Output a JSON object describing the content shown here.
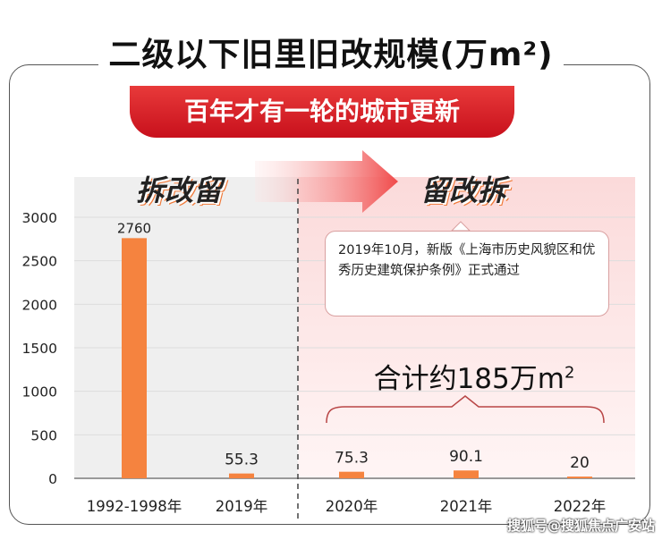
{
  "title": "二级以下旧里旧改规模(万m²)",
  "subtitle": "百年才有一轮的城市更新",
  "phase_left": "拆改留",
  "phase_right": "留改拆",
  "annotation": "2019年10月，新版《上海市历史风貌区和优秀历史建筑保护条例》正式通过",
  "total_label": {
    "text": "合计约185万m",
    "sup": "2"
  },
  "watermark": "搜狐号@搜狐焦点广安站",
  "colors": {
    "bar": "#f5833f",
    "ribbon": "#d91e26",
    "left_bg": "#efefef",
    "right_bg": "#fdeeee"
  },
  "chart_data": {
    "type": "bar",
    "categories": [
      "1992-1998年",
      "2019年",
      "2020年",
      "2021年",
      "2022年"
    ],
    "values": [
      2760,
      55.3,
      75.3,
      90.1,
      20
    ],
    "data_labels": [
      "2760",
      "55.3",
      "75.3",
      "90.1",
      "20"
    ],
    "yticks": [
      "0",
      "500",
      "1000",
      "1500",
      "2000",
      "2500",
      "3000"
    ],
    "ylim": [
      0,
      3000
    ],
    "grid": true
  }
}
